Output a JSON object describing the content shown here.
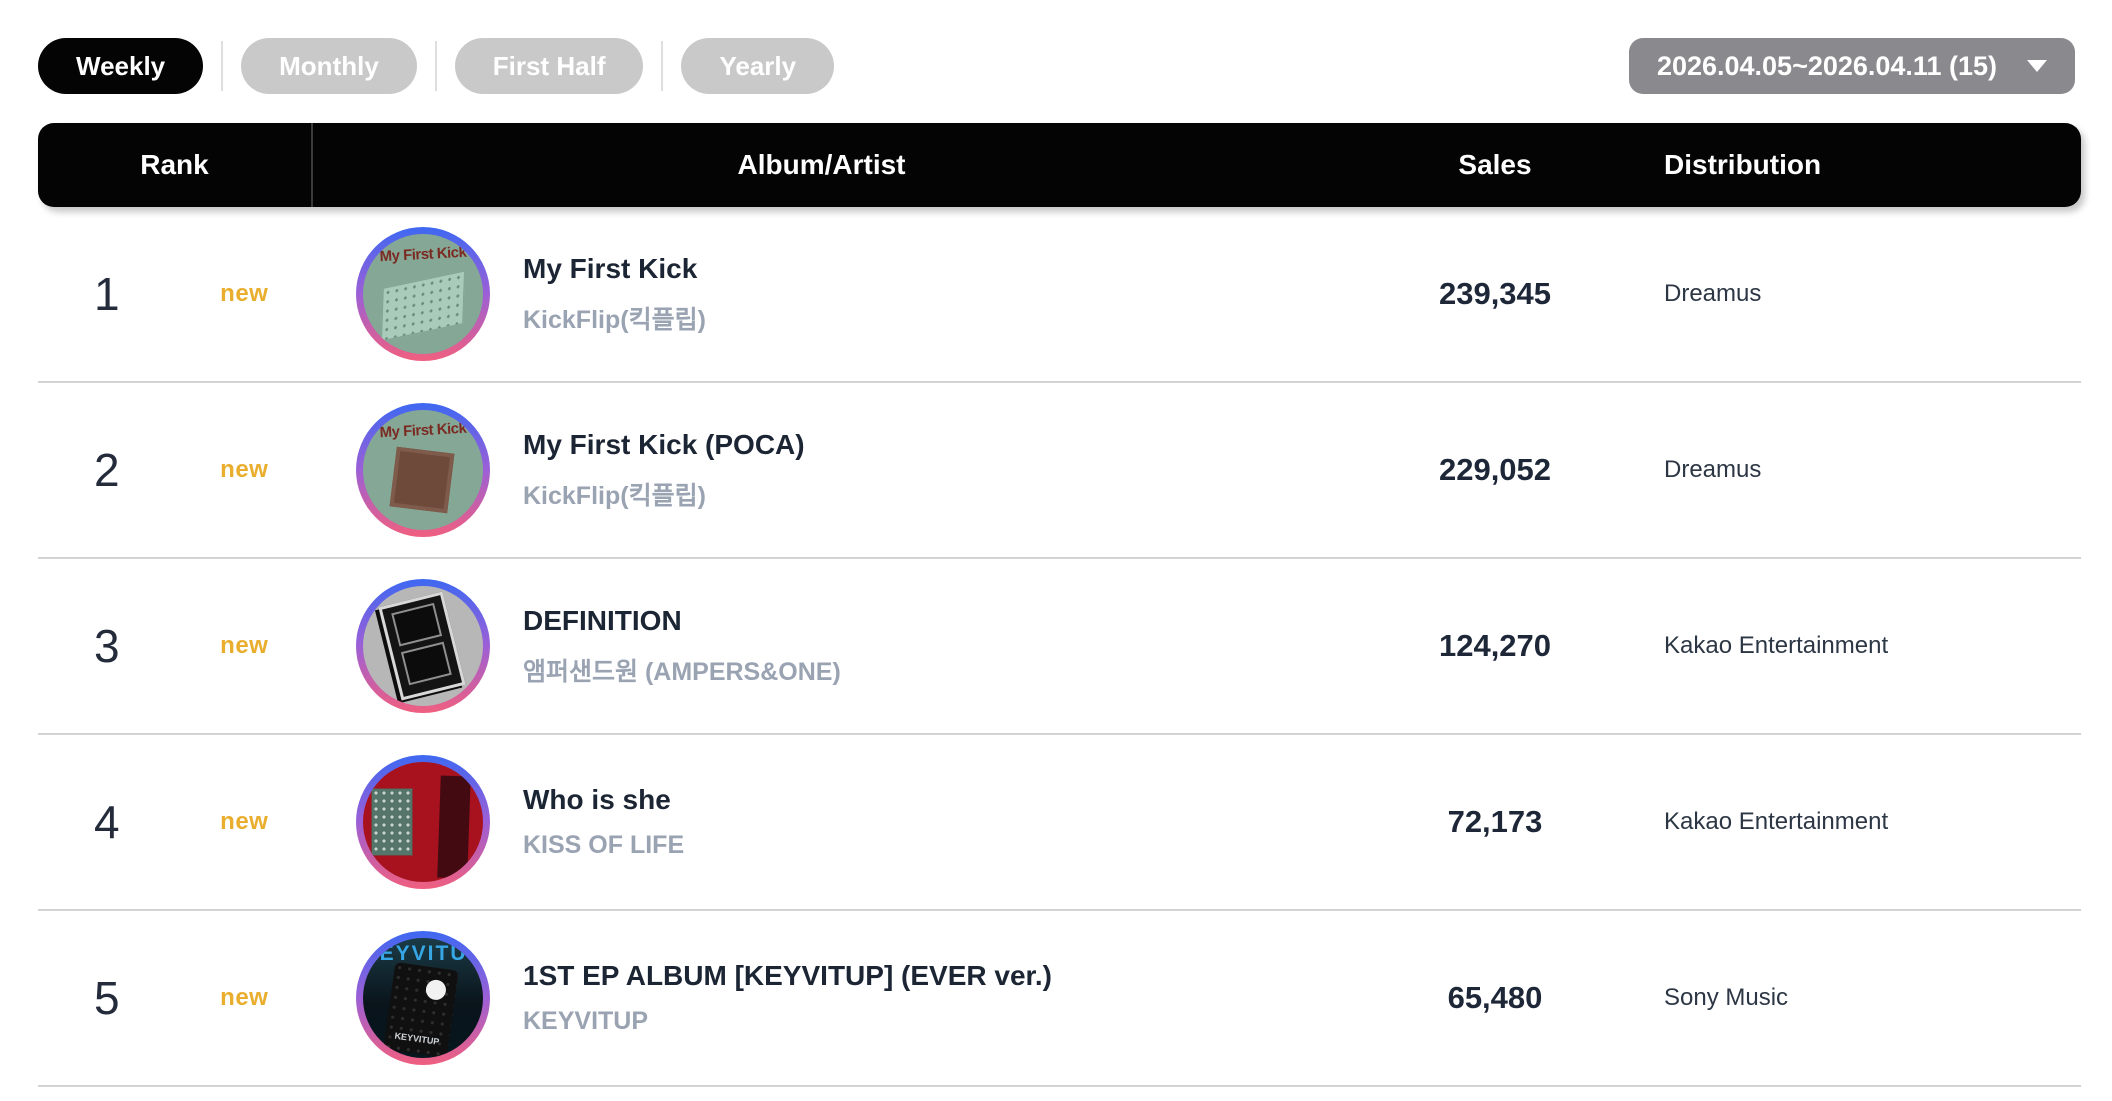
{
  "tabs": [
    {
      "label": "Weekly",
      "active": true
    },
    {
      "label": "Monthly",
      "active": false
    },
    {
      "label": "First Half",
      "active": false
    },
    {
      "label": "Yearly",
      "active": false
    }
  ],
  "period_selector": {
    "label": "2026.04.05~2026.04.11 (15)"
  },
  "table": {
    "headers": {
      "rank": "Rank",
      "album_artist": "Album/Artist",
      "sales": "Sales",
      "distribution": "Distribution"
    },
    "rows": [
      {
        "rank": "1",
        "badge": "new",
        "album": "My First Kick",
        "artist": "KickFlip(킥플립)",
        "sales": "239,345",
        "distribution": "Dreamus",
        "art_text": "My First Kick"
      },
      {
        "rank": "2",
        "badge": "new",
        "album": "My First Kick (POCA)",
        "artist": "KickFlip(킥플립)",
        "sales": "229,052",
        "distribution": "Dreamus",
        "art_text": "My First Kick"
      },
      {
        "rank": "3",
        "badge": "new",
        "album": "DEFINITION",
        "artist": "앰퍼샌드원 (AMPERS&ONE)",
        "sales": "124,270",
        "distribution": "Kakao Entertainment",
        "art_text": ""
      },
      {
        "rank": "4",
        "badge": "new",
        "album": "Who is she",
        "artist": "KISS OF LIFE",
        "sales": "72,173",
        "distribution": "Kakao Entertainment",
        "art_text": ""
      },
      {
        "rank": "5",
        "badge": "new",
        "album": "1ST EP ALBUM [KEYVITUP] (EVER ver.)",
        "artist": "KEYVITUP",
        "sales": "65,480",
        "distribution": "Sony Music",
        "art_text": "KEYVITUP"
      }
    ]
  },
  "colors": {
    "new_badge": "#e9ae2d",
    "active_tab_bg": "#040404",
    "inactive_tab_bg": "#c9c9c9",
    "period_bg": "#8a8a8e",
    "ring_gradient_top": "#3e68f2",
    "ring_gradient_mid": "#9c5fd6",
    "ring_gradient_bottom": "#f05f7f"
  }
}
